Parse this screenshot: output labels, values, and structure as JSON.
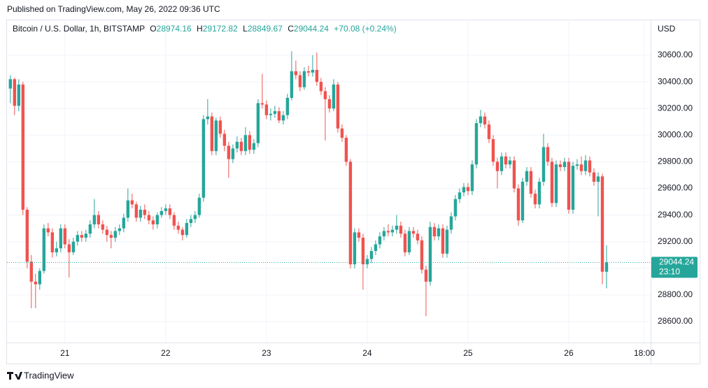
{
  "published": "Published on TradingView.com, May 26, 2022 09:36 UTC",
  "footer": "TradingView",
  "chart_data": {
    "type": "candlestick",
    "title": "Bitcoin / U.S. Dollar, 1h, BITSTAMP",
    "ohlc_labels": [
      "O",
      "H",
      "L",
      "C"
    ],
    "change": "+70.08 (+0.24%)",
    "axis_label": "USD",
    "countdown": "23:10",
    "up_color": "#26a69a",
    "down_color": "#ef5350",
    "grid": true,
    "xlim": [
      -0.8,
      152.5
    ],
    "ylim": [
      28442.5,
      30867.7
    ],
    "xticks": [
      {
        "value": 13,
        "label": "21"
      },
      {
        "value": 37,
        "label": "22"
      },
      {
        "value": 61,
        "label": "23"
      },
      {
        "value": 85,
        "label": "24"
      },
      {
        "value": 109,
        "label": "25"
      },
      {
        "value": 133,
        "label": "26"
      },
      {
        "value": 151,
        "label": "18:00"
      }
    ],
    "yticks": [
      {
        "value": 28600,
        "label": "28600.00"
      },
      {
        "value": 28800,
        "label": "28800.00"
      },
      {
        "value": 29000,
        "label": "29000.00"
      },
      {
        "value": 29200,
        "label": "29200.00"
      },
      {
        "value": 29400,
        "label": "29400.00"
      },
      {
        "value": 29600,
        "label": "29600.00"
      },
      {
        "value": 29800,
        "label": "29800.00"
      },
      {
        "value": 30000,
        "label": "30000.00"
      },
      {
        "value": 30200,
        "label": "30200.00"
      },
      {
        "value": 30400,
        "label": "30400.00"
      },
      {
        "value": 30600,
        "label": "30600.00"
      }
    ],
    "candles": [
      [
        30350,
        30450,
        30240,
        30420
      ],
      [
        30420,
        30430,
        30150,
        30220
      ],
      [
        30220,
        30420,
        30180,
        30380
      ],
      [
        30380,
        30400,
        29400,
        29440
      ],
      [
        29440,
        29460,
        29000,
        29050
      ],
      [
        29050,
        29100,
        28700,
        28900
      ],
      [
        28900,
        28960,
        28700,
        28880
      ],
      [
        28880,
        29000,
        28840,
        28980
      ],
      [
        28980,
        29330,
        28960,
        29300
      ],
      [
        29300,
        29340,
        29240,
        29270
      ],
      [
        29270,
        29300,
        29080,
        29120
      ],
      [
        29120,
        29200,
        29090,
        29150
      ],
      [
        29150,
        29330,
        29120,
        29300
      ],
      [
        29300,
        29330,
        29150,
        29180
      ],
      [
        29180,
        29220,
        28930,
        29120
      ],
      [
        29120,
        29230,
        29100,
        29200
      ],
      [
        29200,
        29280,
        29170,
        29250
      ],
      [
        29250,
        29280,
        29200,
        29230
      ],
      [
        29230,
        29290,
        29200,
        29260
      ],
      [
        29260,
        29360,
        29230,
        29330
      ],
      [
        29330,
        29520,
        29300,
        29400
      ],
      [
        29400,
        29430,
        29300,
        29330
      ],
      [
        29330,
        29360,
        29260,
        29290
      ],
      [
        29290,
        29320,
        29200,
        29250
      ],
      [
        29250,
        29280,
        29150,
        29230
      ],
      [
        29230,
        29310,
        29200,
        29280
      ],
      [
        29280,
        29330,
        29250,
        29300
      ],
      [
        29300,
        29410,
        29270,
        29380
      ],
      [
        29380,
        29600,
        29350,
        29510
      ],
      [
        29510,
        29560,
        29450,
        29480
      ],
      [
        29480,
        29500,
        29350,
        29380
      ],
      [
        29380,
        29470,
        29350,
        29440
      ],
      [
        29440,
        29480,
        29370,
        29400
      ],
      [
        29400,
        29430,
        29330,
        29360
      ],
      [
        29360,
        29390,
        29290,
        29330
      ],
      [
        29330,
        29420,
        29300,
        29400
      ],
      [
        29400,
        29460,
        29380,
        29430
      ],
      [
        29430,
        29480,
        29400,
        29450
      ],
      [
        29450,
        29480,
        29370,
        29400
      ],
      [
        29400,
        29420,
        29290,
        29320
      ],
      [
        29320,
        29350,
        29260,
        29290
      ],
      [
        29290,
        29310,
        29210,
        29250
      ],
      [
        29250,
        29370,
        29230,
        29340
      ],
      [
        29340,
        29400,
        29310,
        29370
      ],
      [
        29370,
        29430,
        29340,
        29400
      ],
      [
        29400,
        29560,
        29380,
        29530
      ],
      [
        29530,
        30150,
        29500,
        30120
      ],
      [
        30120,
        30270,
        30080,
        30140
      ],
      [
        30140,
        30170,
        29850,
        29880
      ],
      [
        29880,
        30130,
        29850,
        30110
      ],
      [
        30110,
        30140,
        29980,
        30010
      ],
      [
        30010,
        30040,
        29880,
        29920
      ],
      [
        29920,
        29950,
        29680,
        29820
      ],
      [
        29820,
        29930,
        29790,
        29900
      ],
      [
        29900,
        29990,
        29870,
        29950
      ],
      [
        29950,
        29980,
        29850,
        29880
      ],
      [
        29880,
        30060,
        29850,
        30000
      ],
      [
        30000,
        30030,
        29860,
        29890
      ],
      [
        29890,
        29970,
        29860,
        29940
      ],
      [
        29940,
        30270,
        29910,
        30240
      ],
      [
        30240,
        30460,
        30200,
        30230
      ],
      [
        30230,
        30260,
        30120,
        30150
      ],
      [
        30150,
        30200,
        30110,
        30160
      ],
      [
        30160,
        30220,
        30130,
        30180
      ],
      [
        30180,
        30210,
        30090,
        30110
      ],
      [
        30110,
        30180,
        30080,
        30150
      ],
      [
        30150,
        30310,
        30120,
        30280
      ],
      [
        30280,
        30630,
        30260,
        30480
      ],
      [
        30480,
        30560,
        30420,
        30450
      ],
      [
        30450,
        30480,
        30330,
        30360
      ],
      [
        30360,
        30510,
        30340,
        30480
      ],
      [
        30480,
        30520,
        30440,
        30470
      ],
      [
        30470,
        30600,
        30440,
        30490
      ],
      [
        30490,
        30620,
        30370,
        30400
      ],
      [
        30400,
        30430,
        30300,
        30330
      ],
      [
        30330,
        30360,
        29960,
        30270
      ],
      [
        30270,
        30300,
        30170,
        30200
      ],
      [
        30200,
        30420,
        30180,
        30380
      ],
      [
        30380,
        30400,
        30020,
        30050
      ],
      [
        30050,
        30080,
        29950,
        29980
      ],
      [
        29980,
        30000,
        29770,
        29800
      ],
      [
        29800,
        29820,
        29000,
        29030
      ],
      [
        29030,
        29300,
        29000,
        29270
      ],
      [
        29270,
        29300,
        29200,
        29230
      ],
      [
        29230,
        29260,
        28840,
        29030
      ],
      [
        29030,
        29100,
        29000,
        29070
      ],
      [
        29070,
        29160,
        29040,
        29130
      ],
      [
        29130,
        29210,
        29100,
        29180
      ],
      [
        29180,
        29270,
        29150,
        29240
      ],
      [
        29240,
        29310,
        29210,
        29280
      ],
      [
        29280,
        29330,
        29240,
        29270
      ],
      [
        29270,
        29320,
        29240,
        29290
      ],
      [
        29290,
        29400,
        29260,
        29320
      ],
      [
        29320,
        29350,
        29230,
        29260
      ],
      [
        29260,
        29290,
        29090,
        29120
      ],
      [
        29120,
        29310,
        29100,
        29280
      ],
      [
        29280,
        29310,
        29230,
        29260
      ],
      [
        29260,
        29290,
        29180,
        29210
      ],
      [
        29210,
        29240,
        28960,
        28990
      ],
      [
        28990,
        29020,
        28640,
        28900
      ],
      [
        28900,
        29350,
        28870,
        29310
      ],
      [
        29310,
        29340,
        29210,
        29240
      ],
      [
        29240,
        29330,
        29210,
        29300
      ],
      [
        29300,
        29330,
        29080,
        29110
      ],
      [
        29110,
        29320,
        29080,
        29290
      ],
      [
        29290,
        29420,
        29260,
        29390
      ],
      [
        29390,
        29550,
        29360,
        29520
      ],
      [
        29520,
        29600,
        29490,
        29570
      ],
      [
        29570,
        29640,
        29540,
        29610
      ],
      [
        29610,
        29640,
        29550,
        29580
      ],
      [
        29580,
        29810,
        29550,
        29780
      ],
      [
        29780,
        30120,
        29750,
        30090
      ],
      [
        30090,
        30190,
        30060,
        30140
      ],
      [
        30140,
        30170,
        30050,
        30080
      ],
      [
        30080,
        30110,
        29940,
        29970
      ],
      [
        29970,
        30000,
        29770,
        29800
      ],
      [
        29800,
        29830,
        29600,
        29730
      ],
      [
        29730,
        29870,
        29700,
        29840
      ],
      [
        29840,
        29870,
        29750,
        29780
      ],
      [
        29780,
        29840,
        29750,
        29810
      ],
      [
        29810,
        29840,
        29570,
        29600
      ],
      [
        29600,
        29630,
        29320,
        29360
      ],
      [
        29360,
        29680,
        29340,
        29650
      ],
      [
        29650,
        29760,
        29620,
        29730
      ],
      [
        29730,
        29760,
        29530,
        29560
      ],
      [
        29560,
        29590,
        29450,
        29480
      ],
      [
        29480,
        29680,
        29450,
        29650
      ],
      [
        29650,
        30010,
        29620,
        29910
      ],
      [
        29910,
        29940,
        29770,
        29800
      ],
      [
        29800,
        29830,
        29460,
        29490
      ],
      [
        29490,
        29810,
        29460,
        29780
      ],
      [
        29780,
        29810,
        29730,
        29760
      ],
      [
        29760,
        29830,
        29730,
        29800
      ],
      [
        29800,
        29830,
        29410,
        29440
      ],
      [
        29440,
        29800,
        29410,
        29770
      ],
      [
        29770,
        29820,
        29740,
        29780
      ],
      [
        29780,
        29840,
        29700,
        29730
      ],
      [
        29730,
        29850,
        29700,
        29810
      ],
      [
        29810,
        29840,
        29690,
        29720
      ],
      [
        29720,
        29750,
        29620,
        29650
      ],
      [
        29650,
        29720,
        29390,
        29690
      ],
      [
        29690,
        29710,
        28880,
        28974.16
      ],
      [
        28974.16,
        29172.82,
        28849.67,
        29044.24
      ]
    ]
  }
}
